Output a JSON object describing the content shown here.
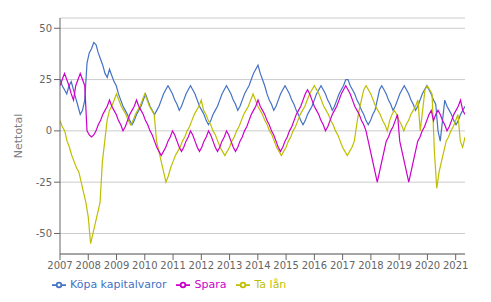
{
  "chart_data": {
    "type": "line",
    "ylabel": "Nettotal",
    "xlim": [
      2007,
      2021.33
    ],
    "xticks": [
      2007,
      2008,
      2009,
      2010,
      2011,
      2012,
      2013,
      2014,
      2015,
      2016,
      2017,
      2018,
      2019,
      2020,
      2021
    ],
    "ylim": [
      -60,
      55
    ],
    "yticks": [
      -50,
      -25,
      0,
      25,
      50
    ],
    "grid": true,
    "legend": "lower left",
    "series": [
      {
        "name": "Köpa kapitalvaror",
        "color": "#4472C4",
        "x": [
          2007,
          2007.0796,
          2007.1592,
          2007.2388,
          2007.3184,
          2007.3981,
          2007.4777,
          2007.5573,
          2007.6369,
          2007.7165,
          2007.7961,
          2007.8757,
          2007.9553,
          2008.0349,
          2008.1146,
          2008.1942,
          2008.2738,
          2008.3534,
          2008.433,
          2008.5126,
          2008.5922,
          2008.6718,
          2008.7514,
          2008.8311,
          2008.9107,
          2008.9903,
          2009.0699,
          2009.1495,
          2009.2291,
          2009.3087,
          2009.3883,
          2009.4679,
          2009.5476,
          2009.6272,
          2009.7068,
          2009.7864,
          2009.866,
          2009.9456,
          2010.0252,
          2010.1048,
          2010.1844,
          2010.2641,
          2010.3437,
          2010.4233,
          2010.5029,
          2010.5825,
          2010.6621,
          2010.7417,
          2010.8213,
          2010.9009,
          2010.9806,
          2011.0602,
          2011.1398,
          2011.2194,
          2011.299,
          2011.3786,
          2011.4582,
          2011.5378,
          2011.6174,
          2011.6971,
          2011.7767,
          2011.8563,
          2011.9359,
          2012.0155,
          2012.0951,
          2012.1747,
          2012.2543,
          2012.3339,
          2012.4136,
          2012.4932,
          2012.5728,
          2012.6524,
          2012.732,
          2012.8116,
          2012.8912,
          2012.9708,
          2013.0504,
          2013.1301,
          2013.2097,
          2013.2893,
          2013.3689,
          2013.4485,
          2013.5281,
          2013.6077,
          2013.6873,
          2013.7669,
          2013.8466,
          2013.9262,
          2014.0058,
          2014.0854,
          2014.165,
          2014.2446,
          2014.3242,
          2014.4038,
          2014.4834,
          2014.5631,
          2014.6427,
          2014.7223,
          2014.8019,
          2014.8815,
          2014.9611,
          2015.0407,
          2015.1203,
          2015.1999,
          2015.2796,
          2015.3592,
          2015.4388,
          2015.5184,
          2015.598,
          2015.6776,
          2015.7572,
          2015.8368,
          2015.9164,
          2015.9961,
          2016.0757,
          2016.1553,
          2016.2349,
          2016.3145,
          2016.3941,
          2016.4737,
          2016.5533,
          2016.6329,
          2016.7126,
          2016.7922,
          2016.8718,
          2016.9514,
          2017.031,
          2017.1106,
          2017.1902,
          2017.2698,
          2017.3494,
          2017.4291,
          2017.5087,
          2017.5883,
          2017.6679,
          2017.7475,
          2017.8271,
          2017.9067,
          2017.9863,
          2018.0659,
          2018.1456,
          2018.2252,
          2018.3048,
          2018.3844,
          2018.464,
          2018.5436,
          2018.6232,
          2018.7028,
          2018.7824,
          2018.8621,
          2018.9417,
          2019.0213,
          2019.1009,
          2019.1805,
          2019.2601,
          2019.3397,
          2019.4193,
          2019.4989,
          2019.5786,
          2019.6582,
          2019.7378,
          2019.8174,
          2019.897,
          2019.9766,
          2020.0562,
          2020.1358,
          2020.2154,
          2020.2951,
          2020.3747,
          2020.4543,
          2020.5339,
          2020.6135,
          2020.6931,
          2020.7727,
          2020.8523,
          2020.9319,
          2021.0116,
          2021.0912,
          2021.1708,
          2021.2504,
          2021.33
        ],
        "values": [
          25,
          22,
          20,
          18,
          22,
          24,
          20,
          16,
          12,
          8,
          10,
          15,
          33,
          38,
          40,
          43,
          42,
          38,
          35,
          32,
          28,
          26,
          30,
          27,
          24,
          22,
          18,
          15,
          12,
          10,
          8,
          5,
          3,
          5,
          8,
          10,
          12,
          15,
          18,
          15,
          12,
          10,
          8,
          10,
          12,
          15,
          18,
          20,
          22,
          20,
          18,
          15,
          13,
          10,
          12,
          15,
          18,
          20,
          22,
          20,
          18,
          15,
          12,
          10,
          8,
          5,
          3,
          5,
          8,
          10,
          12,
          15,
          18,
          20,
          22,
          20,
          18,
          15,
          13,
          10,
          12,
          15,
          18,
          20,
          22,
          25,
          28,
          30,
          32,
          28,
          25,
          22,
          18,
          15,
          13,
          10,
          12,
          15,
          18,
          20,
          22,
          20,
          18,
          15,
          13,
          10,
          8,
          5,
          3,
          5,
          8,
          10,
          12,
          15,
          18,
          20,
          22,
          20,
          18,
          15,
          13,
          10,
          12,
          15,
          18,
          20,
          22,
          25,
          25,
          22,
          20,
          18,
          15,
          13,
          10,
          8,
          5,
          3,
          5,
          8,
          10,
          15,
          20,
          22,
          20,
          18,
          15,
          13,
          10,
          12,
          15,
          18,
          20,
          22,
          20,
          18,
          15,
          13,
          10,
          12,
          15,
          18,
          20,
          22,
          20,
          18,
          15,
          13,
          0,
          -5,
          5,
          15,
          12,
          10,
          8,
          5,
          3,
          5,
          8,
          10,
          12
        ]
      },
      {
        "name": "Ta lån",
        "color": "#BFBF00",
        "x": [
          2007,
          2007.0833,
          2007.1666,
          2007.2499,
          2007.3333,
          2007.4166,
          2007.4999,
          2007.5832,
          2007.6665,
          2007.7498,
          2007.8331,
          2007.9165,
          2007.9998,
          2008.0831,
          2008.1664,
          2008.2497,
          2008.333,
          2008.4163,
          2008.4997,
          2008.583,
          2008.6663,
          2008.7496,
          2008.8329,
          2008.9162,
          2008.9995,
          2009.0828,
          2009.1662,
          2009.2495,
          2009.3328,
          2009.4161,
          2009.4994,
          2009.5827,
          2009.666,
          2009.7494,
          2009.8327,
          2009.916,
          2009.9993,
          2010.0826,
          2010.1659,
          2010.2492,
          2010.3326,
          2010.4159,
          2010.4992,
          2010.5825,
          2010.6658,
          2010.7491,
          2010.8324,
          2010.9158,
          2010.9991,
          2011.0824,
          2011.1657,
          2011.249,
          2011.3323,
          2011.4156,
          2011.499,
          2011.5823,
          2011.6656,
          2011.7489,
          2011.8322,
          2011.9155,
          2011.9988,
          2012.0822,
          2012.1655,
          2012.2488,
          2012.3321,
          2012.4154,
          2012.4987,
          2012.582,
          2012.6653,
          2012.7487,
          2012.832,
          2012.9153,
          2012.9986,
          2013.0819,
          2013.1652,
          2013.2485,
          2013.3319,
          2013.4152,
          2013.4985,
          2013.5818,
          2013.6651,
          2013.7484,
          2013.8317,
          2013.9151,
          2013.9984,
          2014.0817,
          2014.165,
          2014.2483,
          2014.3316,
          2014.4149,
          2014.4983,
          2014.5816,
          2014.6649,
          2014.7482,
          2014.8315,
          2014.9148,
          2014.9981,
          2015.0815,
          2015.1648,
          2015.2481,
          2015.3314,
          2015.4147,
          2015.498,
          2015.5813,
          2015.6647,
          2015.748,
          2015.8313,
          2015.9146,
          2015.9979,
          2016.0812,
          2016.1645,
          2016.2478,
          2016.3312,
          2016.4145,
          2016.4978,
          2016.5811,
          2016.6644,
          2016.7477,
          2016.831,
          2016.9144,
          2016.9977,
          2017.081,
          2017.1643,
          2017.2476,
          2017.3309,
          2017.4142,
          2017.4976,
          2017.5809,
          2017.6642,
          2017.7475,
          2017.8308,
          2017.9141,
          2017.9974,
          2018.0808,
          2018.1641,
          2018.2474,
          2018.3307,
          2018.414,
          2018.4973,
          2018.5806,
          2018.664,
          2018.7473,
          2018.8306,
          2018.9139,
          2018.9972,
          2019.0805,
          2019.1638,
          2019.2472,
          2019.3305,
          2019.4138,
          2019.4971,
          2019.5804,
          2019.6637,
          2019.747,
          2019.8303,
          2019.9137,
          2019.997,
          2020.0803,
          2020.1636,
          2020.2469,
          2020.3302,
          2020.4135,
          2020.4969,
          2020.5802,
          2020.6635,
          2020.7468,
          2020.8301,
          2020.9134,
          2020.9967,
          2021.0801,
          2021.1634,
          2021.2467,
          2021.33
        ],
        "values": [
          5,
          2,
          0,
          -5,
          -8,
          -12,
          -15,
          -18,
          -20,
          -25,
          -30,
          -35,
          -42,
          -55,
          -50,
          -45,
          -40,
          -35,
          -15,
          -5,
          5,
          10,
          12,
          15,
          18,
          15,
          12,
          10,
          8,
          5,
          3,
          5,
          8,
          10,
          12,
          15,
          18,
          15,
          12,
          10,
          8,
          -5,
          -10,
          -15,
          -20,
          -25,
          -22,
          -18,
          -15,
          -12,
          -10,
          -8,
          -5,
          -3,
          0,
          2,
          5,
          8,
          10,
          12,
          15,
          10,
          8,
          5,
          3,
          0,
          -2,
          -5,
          -8,
          -10,
          -12,
          -10,
          -8,
          -5,
          -3,
          0,
          2,
          5,
          8,
          10,
          12,
          15,
          18,
          15,
          12,
          10,
          8,
          5,
          3,
          0,
          -2,
          -5,
          -8,
          -10,
          -12,
          -10,
          -8,
          -5,
          -3,
          0,
          2,
          5,
          8,
          10,
          12,
          15,
          18,
          20,
          22,
          20,
          18,
          15,
          12,
          10,
          8,
          5,
          3,
          0,
          -2,
          -5,
          -8,
          -10,
          -12,
          -10,
          -8,
          -5,
          3,
          10,
          15,
          20,
          22,
          20,
          18,
          15,
          12,
          10,
          8,
          5,
          3,
          0,
          5,
          8,
          10,
          8,
          5,
          3,
          0,
          3,
          5,
          8,
          10,
          12,
          15,
          0,
          10,
          20,
          22,
          20,
          18,
          -10,
          -28,
          -20,
          -15,
          -10,
          -5,
          -3,
          0,
          2,
          5,
          8,
          -5,
          -8,
          -3
        ]
      },
      {
        "name": "Spara",
        "color": "#CC00CC",
        "x": [
          2007,
          2007.0796,
          2007.1592,
          2007.2388,
          2007.3184,
          2007.3981,
          2007.4777,
          2007.5573,
          2007.6369,
          2007.7165,
          2007.7961,
          2007.8757,
          2007.9553,
          2008.0349,
          2008.1146,
          2008.1942,
          2008.2738,
          2008.3534,
          2008.433,
          2008.5126,
          2008.5922,
          2008.6718,
          2008.7514,
          2008.8311,
          2008.9107,
          2008.9903,
          2009.0699,
          2009.1495,
          2009.2291,
          2009.3087,
          2009.3883,
          2009.4679,
          2009.5476,
          2009.6272,
          2009.7068,
          2009.7864,
          2009.866,
          2009.9456,
          2010.0252,
          2010.1048,
          2010.1844,
          2010.2641,
          2010.3437,
          2010.4233,
          2010.5029,
          2010.5825,
          2010.6621,
          2010.7417,
          2010.8213,
          2010.9009,
          2010.9806,
          2011.0602,
          2011.1398,
          2011.2194,
          2011.299,
          2011.3786,
          2011.4582,
          2011.5378,
          2011.6174,
          2011.6971,
          2011.7767,
          2011.8563,
          2011.9359,
          2012.0155,
          2012.0951,
          2012.1747,
          2012.2543,
          2012.3339,
          2012.4136,
          2012.4932,
          2012.5728,
          2012.6524,
          2012.732,
          2012.8116,
          2012.8912,
          2012.9708,
          2013.0504,
          2013.1301,
          2013.2097,
          2013.2893,
          2013.3689,
          2013.4485,
          2013.5281,
          2013.6077,
          2013.6873,
          2013.7669,
          2013.8466,
          2013.9262,
          2014.0058,
          2014.0854,
          2014.165,
          2014.2446,
          2014.3242,
          2014.4038,
          2014.4834,
          2014.5631,
          2014.6427,
          2014.7223,
          2014.8019,
          2014.8815,
          2014.9611,
          2015.0407,
          2015.1203,
          2015.1999,
          2015.2796,
          2015.3592,
          2015.4388,
          2015.5184,
          2015.598,
          2015.6776,
          2015.7572,
          2015.8368,
          2015.9164,
          2015.9961,
          2016.0757,
          2016.1553,
          2016.2349,
          2016.3145,
          2016.3941,
          2016.4737,
          2016.5533,
          2016.6329,
          2016.7126,
          2016.7922,
          2016.8718,
          2016.9514,
          2017.031,
          2017.1106,
          2017.1902,
          2017.2698,
          2017.3494,
          2017.4291,
          2017.5087,
          2017.5883,
          2017.6679,
          2017.7475,
          2017.8271,
          2017.9067,
          2017.9863,
          2018.0659,
          2018.1456,
          2018.2252,
          2018.3048,
          2018.3844,
          2018.464,
          2018.5436,
          2018.6232,
          2018.7028,
          2018.7824,
          2018.8621,
          2018.9417,
          2019.0213,
          2019.1009,
          2019.1805,
          2019.2601,
          2019.3397,
          2019.4193,
          2019.4989,
          2019.5786,
          2019.6582,
          2019.7378,
          2019.8174,
          2019.897,
          2019.9766,
          2020.0562,
          2020.1358,
          2020.2154,
          2020.2951,
          2020.3747,
          2020.4543,
          2020.5339,
          2020.6135,
          2020.6931,
          2020.7727,
          2020.8523,
          2020.9319,
          2021.0116,
          2021.0912,
          2021.1708,
          2021.2504,
          2021.33
        ],
        "values": [
          22,
          25,
          28,
          25,
          22,
          18,
          15,
          22,
          25,
          28,
          25,
          22,
          0,
          -2,
          -3,
          -2,
          0,
          3,
          5,
          8,
          10,
          12,
          15,
          12,
          10,
          8,
          5,
          3,
          0,
          2,
          5,
          8,
          10,
          12,
          15,
          12,
          10,
          8,
          5,
          3,
          0,
          -2,
          -5,
          -8,
          -10,
          -12,
          -10,
          -8,
          -5,
          -3,
          0,
          -2,
          -5,
          -8,
          -10,
          -8,
          -5,
          -3,
          0,
          -2,
          -5,
          -8,
          -10,
          -8,
          -5,
          -3,
          0,
          -2,
          -5,
          -8,
          -10,
          -8,
          -5,
          -3,
          0,
          -2,
          -5,
          -8,
          -10,
          -8,
          -5,
          -3,
          0,
          2,
          5,
          8,
          10,
          12,
          15,
          12,
          10,
          8,
          5,
          3,
          0,
          -2,
          -5,
          -8,
          -10,
          -8,
          -5,
          -3,
          0,
          2,
          5,
          8,
          10,
          12,
          15,
          18,
          20,
          18,
          15,
          12,
          10,
          8,
          5,
          3,
          0,
          2,
          5,
          8,
          10,
          12,
          15,
          18,
          20,
          22,
          20,
          18,
          15,
          12,
          10,
          8,
          5,
          3,
          0,
          -5,
          -10,
          -15,
          -20,
          -25,
          -20,
          -15,
          -10,
          -5,
          -3,
          0,
          2,
          5,
          8,
          -5,
          -10,
          -15,
          -20,
          -25,
          -20,
          -15,
          -10,
          -5,
          -3,
          0,
          2,
          5,
          8,
          10,
          5,
          8,
          10,
          8,
          5,
          3,
          0,
          2,
          5,
          8,
          10,
          12,
          15,
          10,
          8
        ]
      }
    ]
  }
}
